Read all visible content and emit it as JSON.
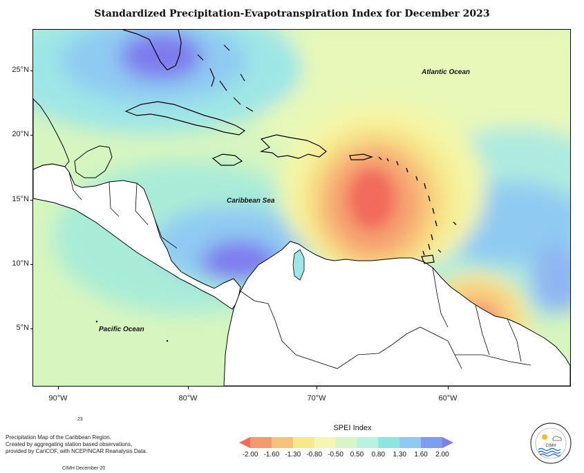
{
  "title": "Standardized Precipitation-Evapotranspiration Index for December 2023",
  "map": {
    "labels": {
      "atlantic": "Atlantic Ocean",
      "caribbean": "Caribbean Sea",
      "pacific": "Pacific Ocean"
    },
    "lat_ticks": [
      "25°N",
      "20°N",
      "15°N",
      "10°N",
      "5°N"
    ],
    "lon_ticks": [
      "90°W",
      "80°W",
      "70°W",
      "60°W"
    ]
  },
  "footnote": {
    "year_fragment": "23",
    "lines": [
      "Precipitation Map of the Caribbean Region.",
      "Created by aggregating station based observations,",
      "provided by CariCOF, with NCEP/NCAR Reanalysis Data."
    ],
    "credit": "CIMH December-20"
  },
  "legend": {
    "title": "SPEI Index",
    "ticks": [
      "-2.00",
      "-1.60",
      "-1.30",
      "-0.80",
      "-0.50",
      "0.50",
      "0.80",
      "1.30",
      "1.60",
      "2.00"
    ],
    "colors": [
      "#f26b5c",
      "#f59a6e",
      "#f7c27a",
      "#f7e88a",
      "#f4f7b0",
      "#d8f5c8",
      "#b8f2e0",
      "#8ce6e0",
      "#8fcaf2",
      "#7d9ef0",
      "#7f7aee"
    ]
  },
  "logo": {
    "text": "CIMH"
  }
}
